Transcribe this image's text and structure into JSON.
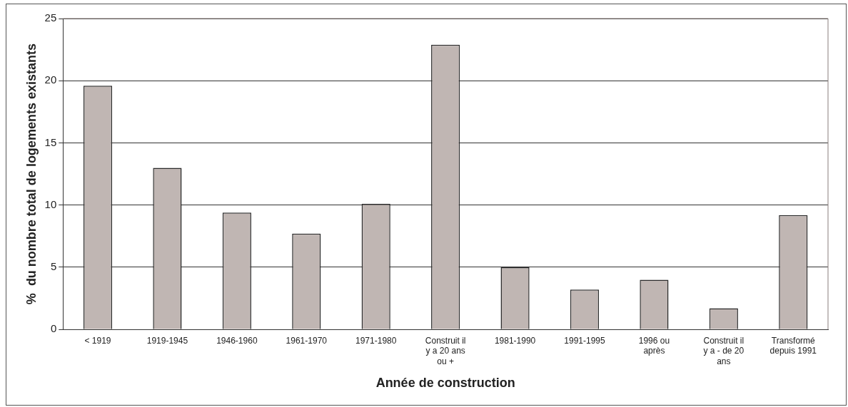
{
  "chart_data": {
    "type": "bar",
    "xlabel": "Année de construction",
    "ylabel": "%  du nombre total de logements existants",
    "categories": [
      "< 1919",
      "1919-1945",
      "1946-1960",
      "1961-1970",
      "1971-1980",
      "Construit il y a 20 ans ou +",
      "1981-1990",
      "1991-1995",
      "1996 ou après",
      "Construit il y a - de 20 ans",
      "Transformé depuis 1991"
    ],
    "values": [
      19.6,
      13.0,
      9.4,
      7.7,
      10.1,
      22.9,
      5.0,
      3.2,
      4.0,
      1.7,
      9.2
    ],
    "color": "#c0b6b3",
    "ylim": [
      0,
      25
    ],
    "yticks": [
      0,
      5,
      10,
      15,
      20,
      25
    ],
    "grid": "y",
    "legend": false
  }
}
